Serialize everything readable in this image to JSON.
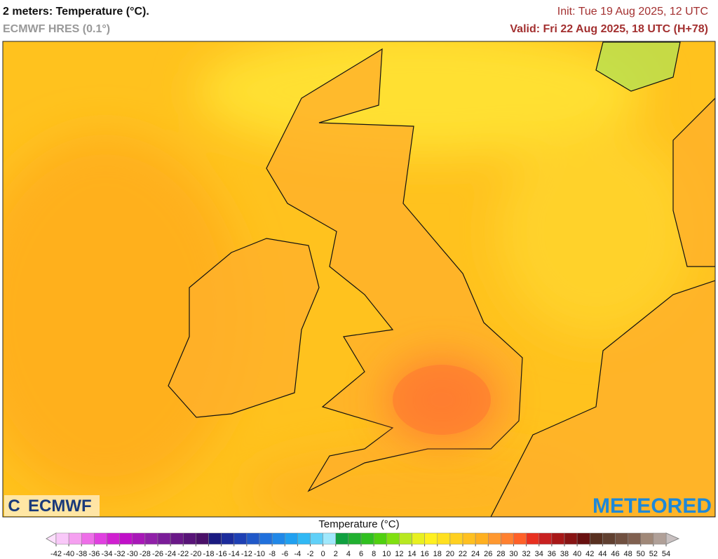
{
  "header": {
    "title": "2 meters: Temperature (°C).",
    "model": "ECMWF HRES (0.1°)",
    "init": "Init: Tue 19 Aug 2025, 12 UTC",
    "valid": "Valid: Fri 22 Aug 2025, 18 UTC (H+78)"
  },
  "logos": {
    "left": "ECMWF",
    "right": "METEORED"
  },
  "legend": {
    "title": "Temperature (°C)",
    "ticks": [
      -42,
      -40,
      -38,
      -36,
      -34,
      -32,
      -30,
      -28,
      -26,
      -24,
      -22,
      -20,
      -18,
      -16,
      -14,
      -12,
      -10,
      -8,
      -6,
      -4,
      -2,
      0,
      2,
      4,
      6,
      8,
      10,
      12,
      14,
      16,
      18,
      20,
      22,
      24,
      26,
      28,
      30,
      32,
      34,
      36,
      38,
      40,
      42,
      44,
      46,
      48,
      50,
      52,
      54
    ],
    "colors": [
      "#f9c8f9",
      "#f5a0f0",
      "#ee6ee8",
      "#e040e0",
      "#d020d0",
      "#c010c8",
      "#a818b8",
      "#9020a8",
      "#7a1c98",
      "#6a1888",
      "#581478",
      "#4a1068",
      "#1a1a80",
      "#1c2c9c",
      "#1e40b4",
      "#2058c8",
      "#2070dc",
      "#2088e8",
      "#20a0f0",
      "#30b8f4",
      "#60d0f8",
      "#a0e8fc",
      "#10a040",
      "#20b030",
      "#30c020",
      "#50d010",
      "#80e010",
      "#b8e820",
      "#e8f020",
      "#fff020",
      "#ffe020",
      "#ffd020",
      "#ffc020",
      "#ffb020",
      "#ff9830",
      "#ff8030",
      "#ff6028",
      "#e83020",
      "#c82020",
      "#a81818",
      "#881414",
      "#681010",
      "#583020",
      "#604030",
      "#705040",
      "#806050",
      "#a08878",
      "#b0a098"
    ]
  }
}
